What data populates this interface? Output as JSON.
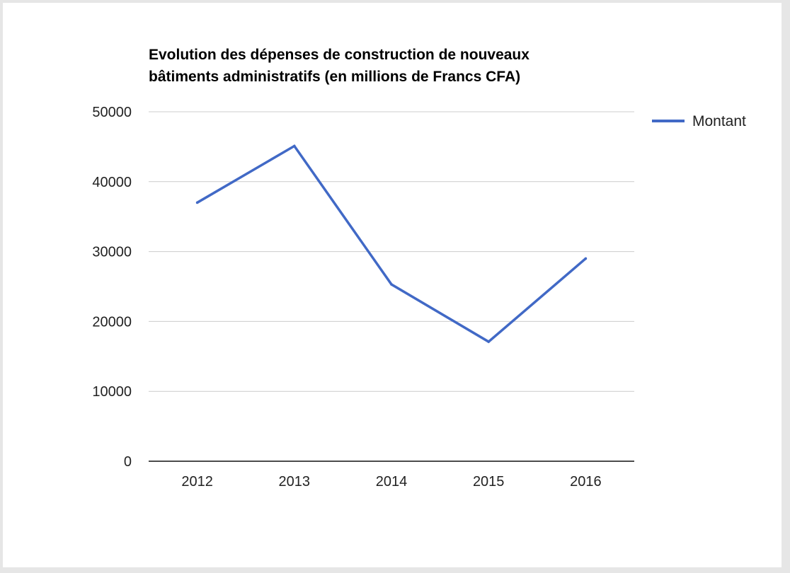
{
  "chart_data": {
    "type": "line",
    "title_lines": [
      "Evolution des dépenses de construction de nouveaux",
      "bâtiments administratifs (en millions de Francs CFA)"
    ],
    "categories": [
      "2012",
      "2013",
      "2014",
      "2015",
      "2016"
    ],
    "series": [
      {
        "name": "Montant",
        "values": [
          37000,
          45100,
          25300,
          17100,
          29000
        ],
        "color": "#4169c6"
      }
    ],
    "ylim": [
      0,
      50000
    ],
    "yticks": [
      0,
      10000,
      20000,
      30000,
      40000,
      50000
    ],
    "grid": true,
    "legend_position": "right"
  }
}
